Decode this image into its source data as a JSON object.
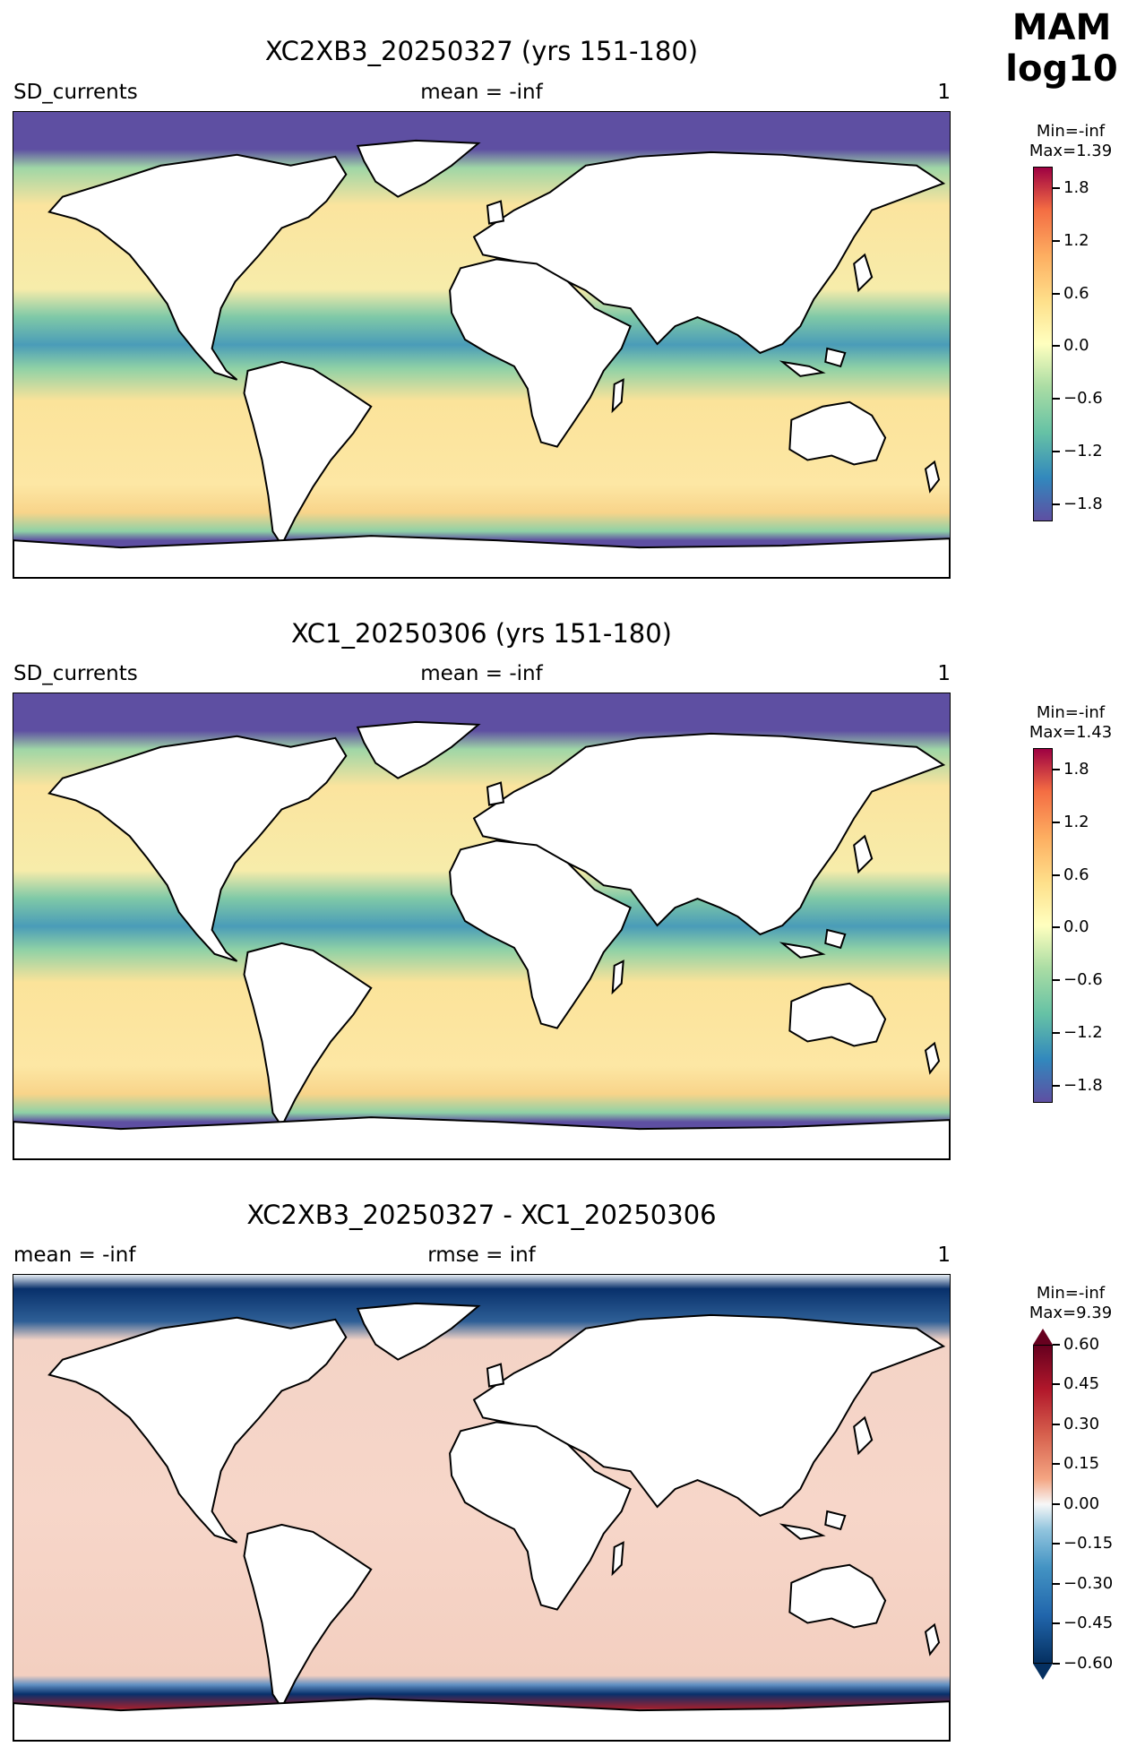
{
  "header": {
    "season": "MAM",
    "transform": "log10"
  },
  "colors": {
    "ocean_warm": "#fbe09b",
    "ocean_neutral": "#fdf4b6",
    "ocean_low": "#6cc0a5",
    "ice": "#5e4fa2",
    "diff_pos": "#f6cfc0",
    "diff_neg": "#d7e6f1",
    "diff_strong_neg": "#08306b",
    "diff_strong_pos": "#8b1a2b",
    "land": "#ffffff",
    "coast": "#000000"
  },
  "panels": [
    {
      "title": "XC2XB3_20250327 (yrs 151-180)",
      "left": "SD_currents",
      "center": "mean = -inf",
      "right": "1",
      "colorbar": {
        "min": "Min=-inf",
        "max": "Max=1.39",
        "ticks": [
          "1.8",
          "1.2",
          "0.6",
          "0.0",
          "−0.6",
          "−1.2",
          "−1.8"
        ]
      }
    },
    {
      "title": "XC1_20250306 (yrs 151-180)",
      "left": "SD_currents",
      "center": "mean = -inf",
      "right": "1",
      "colorbar": {
        "min": "Min=-inf",
        "max": "Max=1.43",
        "ticks": [
          "1.8",
          "1.2",
          "0.6",
          "0.0",
          "−0.6",
          "−1.2",
          "−1.8"
        ]
      }
    },
    {
      "title": "XC2XB3_20250327 - XC1_20250306",
      "left": "mean = -inf",
      "center": "rmse = inf",
      "right": "1",
      "colorbar": {
        "min": "Min=-inf",
        "max": "Max=9.39",
        "ticks": [
          "0.60",
          "0.45",
          "0.30",
          "0.15",
          "0.00",
          "−0.15",
          "−0.30",
          "−0.45",
          "−0.60"
        ]
      }
    }
  ]
}
